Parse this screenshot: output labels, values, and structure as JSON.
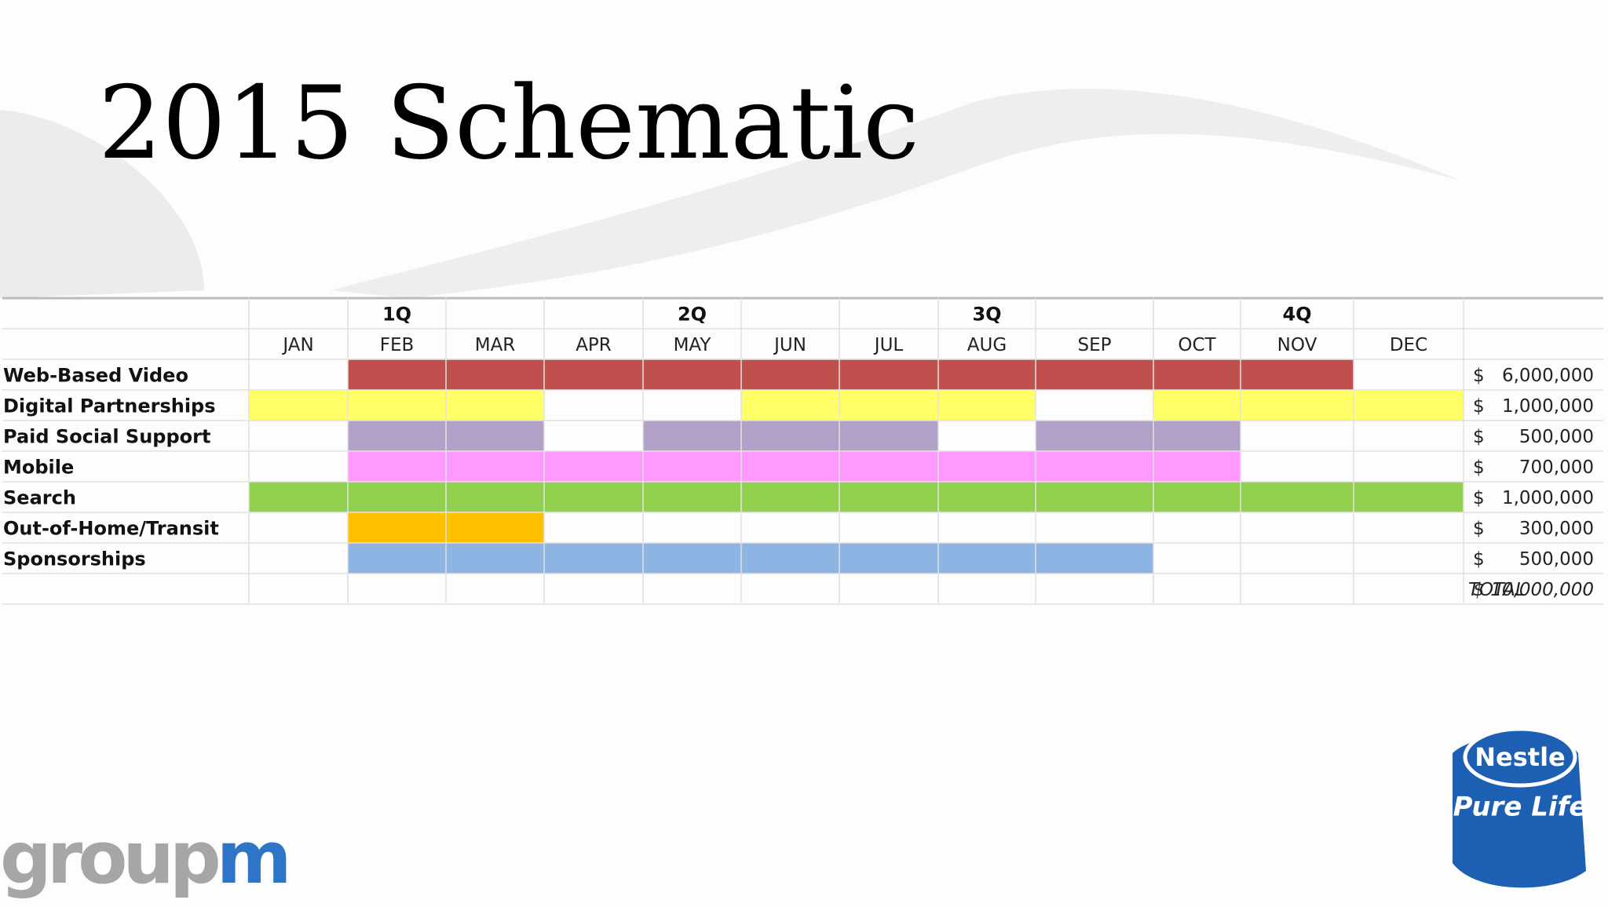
{
  "title": "2015 Schematic",
  "table": {
    "quarters": [
      null,
      "1Q",
      null,
      null,
      "2Q",
      null,
      null,
      "3Q",
      null,
      null,
      "4Q",
      null
    ],
    "months": [
      "JAN",
      "FEB",
      "MAR",
      "APR",
      "MAY",
      "JUN",
      "JUL",
      "AUG",
      "SEP",
      "OCT",
      "NOV",
      "DEC"
    ],
    "rows": [
      {
        "label": "Web-Based Video",
        "color": "#c0504d",
        "spans": [
          [
            "FEB",
            "NOV"
          ]
        ],
        "currency": "$",
        "amount": "6,000,000"
      },
      {
        "label": "Digital Partnerships",
        "color": "#ffff66",
        "spans": [
          [
            "JAN",
            "MAR"
          ],
          [
            "JUN",
            "AUG"
          ],
          [
            "OCT",
            "DEC"
          ]
        ],
        "currency": "$",
        "amount": "1,000,000"
      },
      {
        "label": "Paid Social Support",
        "color": "#b1a0c7",
        "spans": [
          [
            "FEB",
            "MAR"
          ],
          [
            "MAY",
            "JUL"
          ],
          [
            "SEP",
            "OCT"
          ]
        ],
        "currency": "$",
        "amount": "500,000"
      },
      {
        "label": "Mobile",
        "color": "#ff99ff",
        "spans": [
          [
            "FEB",
            "OCT"
          ]
        ],
        "currency": "$",
        "amount": "700,000"
      },
      {
        "label": "Search",
        "color": "#92d050",
        "spans": [
          [
            "JAN",
            "DEC"
          ]
        ],
        "currency": "$",
        "amount": "1,000,000"
      },
      {
        "label": "Out-of-Home/Transit",
        "color": "#ffc000",
        "spans": [
          [
            "FEB",
            "MAR"
          ]
        ],
        "currency": "$",
        "amount": "300,000"
      },
      {
        "label": "Sponsorships",
        "color": "#8db4e2",
        "spans": [
          [
            "FEB",
            "SEP"
          ]
        ],
        "currency": "$",
        "amount": "500,000"
      }
    ],
    "total": {
      "label": "TOTAL",
      "currency": "$",
      "amount": "10,000,000"
    }
  },
  "logos": {
    "left_a": "group",
    "left_b": "m",
    "right_brand": "Nestle",
    "right_product": "Pure Life"
  }
}
